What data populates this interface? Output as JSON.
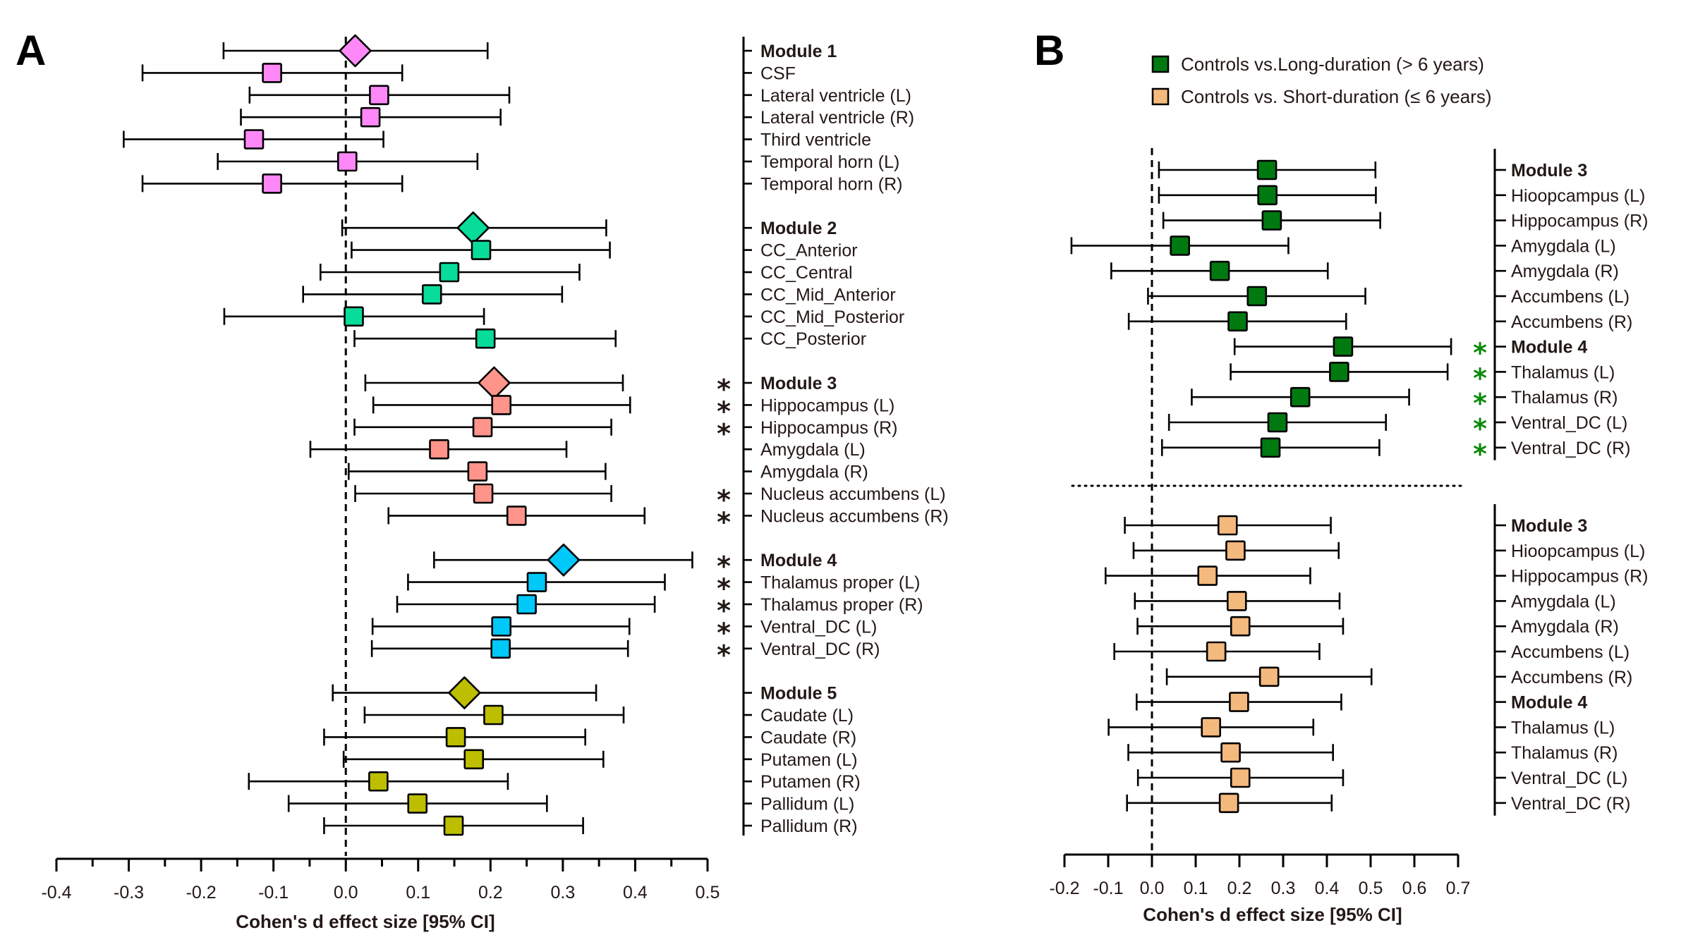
{
  "chart_data": [
    {
      "id": "A",
      "type": "forest",
      "panel_label": "A",
      "xlabel": "Cohen's d effect size [95% CI]",
      "xlim": [
        -0.4,
        0.5
      ],
      "xticks": [
        -0.4,
        -0.3,
        -0.2,
        -0.1,
        0.0,
        0.1,
        0.2,
        0.3,
        0.4,
        0.5
      ],
      "xtick_labels": [
        "-0.4",
        "-0.3",
        "-0.2",
        "-0.1",
        "0.0",
        "0.1",
        "0.2",
        "0.3",
        "0.4",
        "0.5"
      ],
      "reference_line": 0,
      "significance_marker": "*",
      "significance_color": "#231815",
      "groups": [
        {
          "name": "Module 1",
          "color": "#FF88F8",
          "rows": [
            {
              "label": "Module 1",
              "module": true,
              "d": 0.013,
              "lo": -0.169,
              "hi": 0.196,
              "sig": false
            },
            {
              "label": "CSF",
              "d": -0.102,
              "lo": -0.281,
              "hi": 0.078,
              "sig": false
            },
            {
              "label": "Lateral ventricle (L)",
              "d": 0.046,
              "lo": -0.133,
              "hi": 0.226,
              "sig": false
            },
            {
              "label": "Lateral ventricle (R)",
              "d": 0.034,
              "lo": -0.145,
              "hi": 0.214,
              "sig": false
            },
            {
              "label": "Third ventricle",
              "d": -0.127,
              "lo": -0.307,
              "hi": 0.052,
              "sig": false
            },
            {
              "label": "Temporal horn (L)",
              "d": 0.002,
              "lo": -0.177,
              "hi": 0.182,
              "sig": false
            },
            {
              "label": "Temporal horn (R)",
              "d": -0.102,
              "lo": -0.281,
              "hi": 0.078,
              "sig": false
            }
          ]
        },
        {
          "name": "Module 2",
          "color": "#08DC9A",
          "rows": [
            {
              "label": "Module 2",
              "module": true,
              "d": 0.176,
              "lo": -0.005,
              "hi": 0.36,
              "sig": false
            },
            {
              "label": "CC_Anterior",
              "d": 0.187,
              "lo": 0.008,
              "hi": 0.365,
              "sig": false
            },
            {
              "label": "CC_Central",
              "d": 0.143,
              "lo": -0.035,
              "hi": 0.323,
              "sig": false
            },
            {
              "label": "CC_Mid_Anterior",
              "d": 0.119,
              "lo": -0.059,
              "hi": 0.299,
              "sig": false
            },
            {
              "label": "CC_Mid_Posterior",
              "d": 0.011,
              "lo": -0.168,
              "hi": 0.191,
              "sig": false
            },
            {
              "label": "CC_Posterior",
              "d": 0.193,
              "lo": 0.012,
              "hi": 0.373,
              "sig": false
            }
          ]
        },
        {
          "name": "Module 3",
          "color": "#FF948A",
          "rows": [
            {
              "label": "Module 3",
              "module": true,
              "d": 0.205,
              "lo": 0.027,
              "hi": 0.383,
              "sig": true
            },
            {
              "label": "Hippocampus (L)",
              "d": 0.215,
              "lo": 0.038,
              "hi": 0.393,
              "sig": true
            },
            {
              "label": "Hippocampus (R)",
              "d": 0.189,
              "lo": 0.012,
              "hi": 0.367,
              "sig": true
            },
            {
              "label": "Amygdala (L)",
              "d": 0.129,
              "lo": -0.049,
              "hi": 0.305,
              "sig": false
            },
            {
              "label": "Amygdala (R)",
              "d": 0.182,
              "lo": 0.004,
              "hi": 0.359,
              "sig": false
            },
            {
              "label": "Nucleus accumbens (L)",
              "d": 0.19,
              "lo": 0.013,
              "hi": 0.367,
              "sig": true
            },
            {
              "label": "Nucleus accumbens (R)",
              "d": 0.236,
              "lo": 0.059,
              "hi": 0.413,
              "sig": true
            }
          ]
        },
        {
          "name": "Module 4",
          "color": "#00C8F8",
          "rows": [
            {
              "label": "Module 4",
              "module": true,
              "d": 0.301,
              "lo": 0.122,
              "hi": 0.479,
              "sig": true
            },
            {
              "label": "Thalamus proper (L)",
              "d": 0.264,
              "lo": 0.086,
              "hi": 0.441,
              "sig": true
            },
            {
              "label": "Thalamus proper (R)",
              "d": 0.25,
              "lo": 0.071,
              "hi": 0.427,
              "sig": true
            },
            {
              "label": "Ventral_DC (L)",
              "d": 0.215,
              "lo": 0.037,
              "hi": 0.392,
              "sig": true
            },
            {
              "label": "Ventral_DC (R)",
              "d": 0.214,
              "lo": 0.036,
              "hi": 0.39,
              "sig": true
            }
          ]
        },
        {
          "name": "Module 5",
          "color": "#BEBE00",
          "rows": [
            {
              "label": "Module 5",
              "module": true,
              "d": 0.164,
              "lo": -0.018,
              "hi": 0.346,
              "sig": false
            },
            {
              "label": "Caudate (L)",
              "d": 0.204,
              "lo": 0.026,
              "hi": 0.384,
              "sig": false
            },
            {
              "label": "Caudate (R)",
              "d": 0.152,
              "lo": -0.03,
              "hi": 0.331,
              "sig": false
            },
            {
              "label": "Putamen (L)",
              "d": 0.177,
              "lo": -0.003,
              "hi": 0.356,
              "sig": false
            },
            {
              "label": "Putamen (R)",
              "d": 0.045,
              "lo": -0.134,
              "hi": 0.224,
              "sig": false
            },
            {
              "label": "Pallidum (L)",
              "d": 0.099,
              "lo": -0.079,
              "hi": 0.278,
              "sig": false
            },
            {
              "label": "Pallidum (R)",
              "d": 0.149,
              "lo": -0.03,
              "hi": 0.328,
              "sig": false
            }
          ]
        }
      ]
    },
    {
      "id": "B",
      "type": "forest",
      "panel_label": "B",
      "xlabel": "Cohen's d effect size [95% CI]",
      "xlim": [
        -0.2,
        0.7
      ],
      "xticks": [
        -0.2,
        -0.1,
        0.0,
        0.1,
        0.2,
        0.3,
        0.4,
        0.5,
        0.6,
        0.7
      ],
      "xtick_labels": [
        "-0.2",
        "-0.1",
        "0.0",
        "0.1",
        "0.2",
        "0.3",
        "0.4",
        "0.5",
        "0.6",
        "0.7"
      ],
      "reference_line": 0,
      "significance_marker": "*",
      "significance_color": "#0A8A0A",
      "legend": {
        "position": "top",
        "entries": [
          {
            "label": "Controls vs.Long-duration (> 6 years)",
            "color": "#007A10"
          },
          {
            "label": "Controls vs. Short-duration (≤ 6 years)",
            "color": "#F4B97D"
          }
        ]
      },
      "series": [
        {
          "name": "Controls vs.Long-duration (> 6 years)",
          "color": "#007A10",
          "rows": [
            {
              "label": "Module 3",
              "module": true,
              "d": 0.263,
              "lo": 0.016,
              "hi": 0.511,
              "sig": false
            },
            {
              "label": "Hioopcampus (L)",
              "d": 0.264,
              "lo": 0.016,
              "hi": 0.512,
              "sig": false
            },
            {
              "label": "Hippocampus (R)",
              "d": 0.274,
              "lo": 0.026,
              "hi": 0.522,
              "sig": false
            },
            {
              "label": "Amygdala (L)",
              "d": 0.064,
              "lo": -0.184,
              "hi": 0.312,
              "sig": false
            },
            {
              "label": "Amygdala (R)",
              "d": 0.155,
              "lo": -0.093,
              "hi": 0.402,
              "sig": false
            },
            {
              "label": "Accumbens (L)",
              "d": 0.24,
              "lo": -0.009,
              "hi": 0.488,
              "sig": false
            },
            {
              "label": "Accumbens (R)",
              "d": 0.196,
              "lo": -0.053,
              "hi": 0.444,
              "sig": false
            },
            {
              "label": "Module 4",
              "module": true,
              "d": 0.437,
              "lo": 0.189,
              "hi": 0.684,
              "sig": true
            },
            {
              "label": "Thalamus (L)",
              "d": 0.428,
              "lo": 0.18,
              "hi": 0.676,
              "sig": true
            },
            {
              "label": "Thalamus (R)",
              "d": 0.339,
              "lo": 0.091,
              "hi": 0.588,
              "sig": true
            },
            {
              "label": "Ventral_DC (L)",
              "d": 0.287,
              "lo": 0.039,
              "hi": 0.535,
              "sig": true
            },
            {
              "label": "Ventral_DC (R)",
              "d": 0.271,
              "lo": 0.023,
              "hi": 0.52,
              "sig": true
            }
          ]
        },
        {
          "name": "Controls vs. Short-duration (≤ 6 years)",
          "color": "#F4B97D",
          "rows": [
            {
              "label": "Module 3",
              "module": true,
              "d": 0.173,
              "lo": -0.062,
              "hi": 0.409,
              "sig": false
            },
            {
              "label": "Hioopcampus (L)",
              "d": 0.191,
              "lo": -0.042,
              "hi": 0.427,
              "sig": false
            },
            {
              "label": "Hippocampus (R)",
              "d": 0.127,
              "lo": -0.106,
              "hi": 0.362,
              "sig": false
            },
            {
              "label": "Amygdala (L)",
              "d": 0.194,
              "lo": -0.039,
              "hi": 0.429,
              "sig": false
            },
            {
              "label": "Amygdala (R)",
              "d": 0.202,
              "lo": -0.033,
              "hi": 0.437,
              "sig": false
            },
            {
              "label": "Accumbens (L)",
              "d": 0.147,
              "lo": -0.086,
              "hi": 0.383,
              "sig": false
            },
            {
              "label": "Accumbens (R)",
              "d": 0.268,
              "lo": 0.034,
              "hi": 0.502,
              "sig": false
            },
            {
              "label": "Module 4",
              "module": true,
              "d": 0.199,
              "lo": -0.035,
              "hi": 0.433,
              "sig": false
            },
            {
              "label": "Thalamus (L)",
              "d": 0.135,
              "lo": -0.099,
              "hi": 0.369,
              "sig": false
            },
            {
              "label": "Thalamus (R)",
              "d": 0.18,
              "lo": -0.054,
              "hi": 0.414,
              "sig": false
            },
            {
              "label": "Ventral_DC (L)",
              "d": 0.202,
              "lo": -0.032,
              "hi": 0.437,
              "sig": false
            },
            {
              "label": "Ventral_DC (R)",
              "d": 0.176,
              "lo": -0.057,
              "hi": 0.411,
              "sig": false
            }
          ]
        }
      ]
    }
  ]
}
